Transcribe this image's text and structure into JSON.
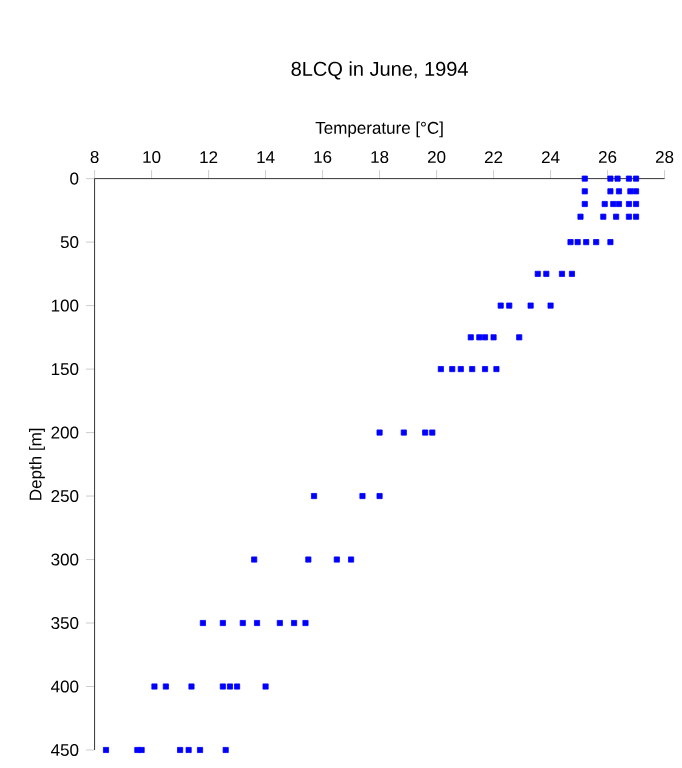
{
  "chart_data": {
    "type": "scatter",
    "title": "8LCQ in June, 1994",
    "xlabel": "Temperature [°C]",
    "ylabel": "Depth [m]",
    "xlim": [
      8,
      28
    ],
    "xticks": [
      8,
      10,
      12,
      14,
      16,
      18,
      20,
      22,
      24,
      26,
      28
    ],
    "ylim": [
      450,
      0
    ],
    "yticks": [
      0,
      50,
      100,
      150,
      200,
      250,
      300,
      350,
      400,
      450
    ],
    "marker": "square",
    "series": [
      {
        "color": "#0000ff",
        "x": [
          25.2,
          26.1,
          26.35,
          26.75,
          27.0,
          25.2,
          26.1,
          26.4,
          26.8,
          27.0,
          25.2,
          25.9,
          26.2,
          26.4,
          26.75,
          27.0,
          25.05,
          25.85,
          26.3,
          26.75,
          27.0,
          24.7,
          24.95,
          25.25,
          25.6,
          26.1,
          23.55,
          23.85,
          24.4,
          24.75,
          22.25,
          22.55,
          23.3,
          24.0,
          21.2,
          21.5,
          21.7,
          22.0,
          22.9,
          20.15,
          20.55,
          20.85,
          21.25,
          21.7,
          22.1,
          18.0,
          18.85,
          19.6,
          19.85,
          15.7,
          17.4,
          18.0,
          13.6,
          15.5,
          16.5,
          17.0,
          11.8,
          12.5,
          13.2,
          13.7,
          14.5,
          15.0,
          15.4,
          10.1,
          10.5,
          11.4,
          12.5,
          12.75,
          13.0,
          14.0,
          8.4,
          9.5,
          9.65,
          11.0,
          11.3,
          11.7,
          12.6
        ],
        "values": [
          0,
          0,
          0,
          0,
          0,
          10,
          10,
          10,
          10,
          10,
          20,
          20,
          20,
          20,
          20,
          20,
          30,
          30,
          30,
          30,
          30,
          50,
          50,
          50,
          50,
          50,
          75,
          75,
          75,
          75,
          100,
          100,
          100,
          100,
          125,
          125,
          125,
          125,
          125,
          150,
          150,
          150,
          150,
          150,
          150,
          200,
          200,
          200,
          200,
          250,
          250,
          250,
          300,
          300,
          300,
          300,
          350,
          350,
          350,
          350,
          350,
          350,
          350,
          400,
          400,
          400,
          400,
          400,
          400,
          400,
          450,
          450,
          450,
          450,
          450,
          450,
          450
        ]
      }
    ]
  }
}
